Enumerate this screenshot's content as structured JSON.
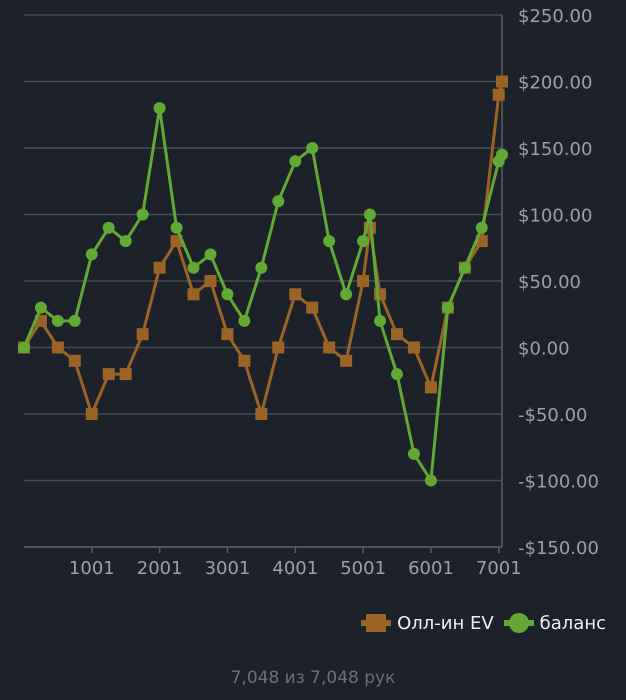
{
  "chart_data": {
    "type": "line",
    "title": "",
    "xlabel": "",
    "ylabel": "",
    "xlim": [
      1,
      7048
    ],
    "ylim": [
      -150,
      250
    ],
    "x_ticks": [
      1001,
      2001,
      3001,
      4001,
      5001,
      6001,
      7001
    ],
    "x_tick_labels": [
      "1001",
      "2001",
      "3001",
      "4001",
      "5001",
      "6001",
      "7001"
    ],
    "y_ticks": [
      -150,
      -100,
      -50,
      0,
      50,
      100,
      150,
      200,
      250
    ],
    "y_tick_labels": [
      "-$150.00",
      "-$100.00",
      "-$50.00",
      "$0.00",
      "$50.00",
      "$100.00",
      "$150.00",
      "$200.00",
      "$250.00"
    ],
    "grid": true,
    "legend_position": "bottom-right",
    "x": [
      1,
      250,
      500,
      750,
      1000,
      1250,
      1500,
      1750,
      2000,
      2250,
      2500,
      2750,
      3000,
      3250,
      3500,
      3750,
      4000,
      4250,
      4500,
      4750,
      5000,
      5100,
      5250,
      5500,
      5750,
      6000,
      6250,
      6500,
      6750,
      7000,
      7048
    ],
    "series": [
      {
        "name": "Олл-ин EV",
        "color": "#9c6326",
        "marker": "square",
        "values": [
          0,
          20,
          0,
          -10,
          -50,
          -20,
          -20,
          10,
          60,
          80,
          40,
          50,
          10,
          -10,
          -50,
          0,
          40,
          30,
          0,
          -10,
          50,
          90,
          40,
          10,
          0,
          -30,
          30,
          60,
          80,
          190,
          200
        ]
      },
      {
        "name": "баланс",
        "color": "#62a834",
        "marker": "circle",
        "values": [
          0,
          30,
          20,
          20,
          70,
          90,
          80,
          100,
          180,
          90,
          60,
          70,
          40,
          20,
          60,
          110,
          140,
          150,
          80,
          40,
          80,
          100,
          20,
          -20,
          -80,
          -100,
          30,
          60,
          90,
          140,
          145
        ]
      }
    ]
  },
  "footer": "7,048 из 7,048 рук"
}
